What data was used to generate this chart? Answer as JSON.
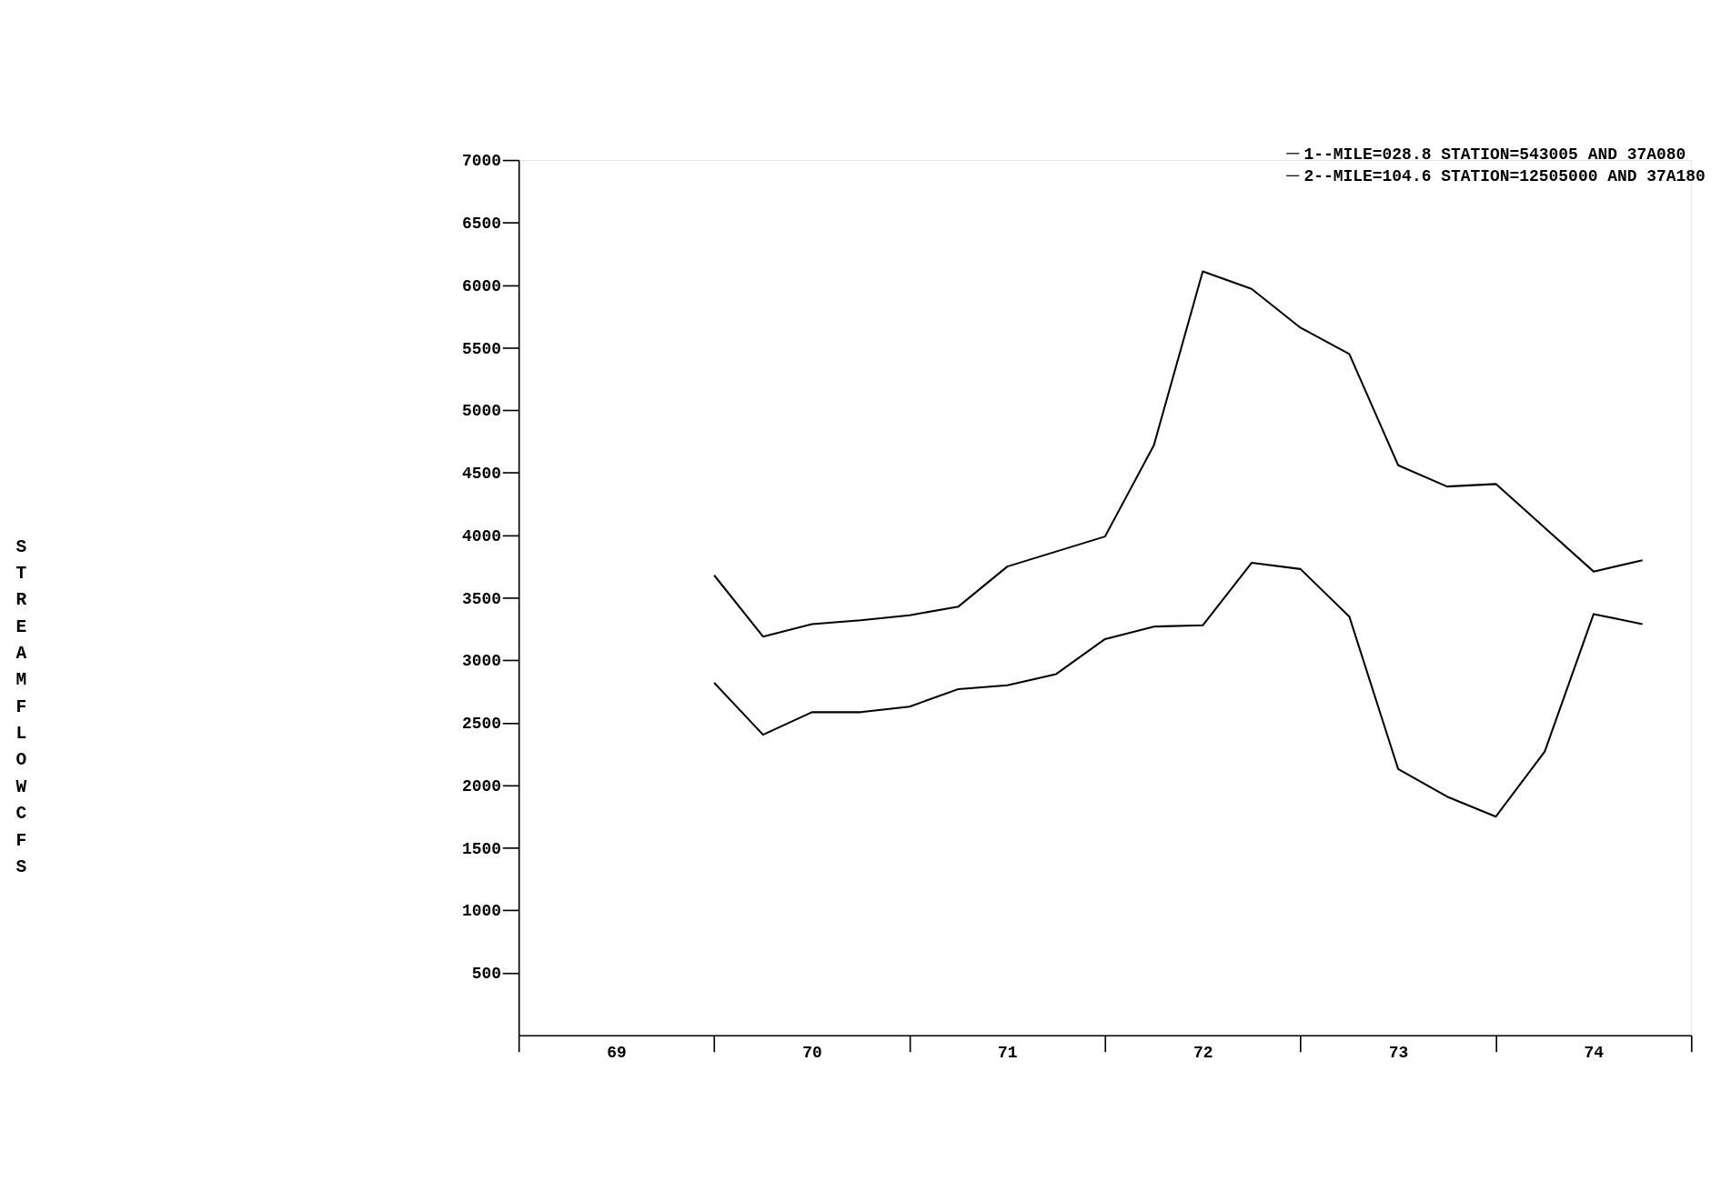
{
  "chart_data": {
    "type": "line",
    "ylabel": "STREAM FLOW CFS",
    "x": [
      70.0,
      70.25,
      70.5,
      70.75,
      71.0,
      71.25,
      71.5,
      71.75,
      72.0,
      72.25,
      72.5,
      72.75,
      73.0,
      73.25,
      73.5,
      73.75,
      74.0,
      74.25,
      74.5,
      74.75
    ],
    "series": [
      {
        "name": "1--MILE=028.8 STATION=543005   AND 37A080",
        "color": "#000000",
        "values": [
          3680,
          3190,
          3290,
          3320,
          3360,
          3430,
          3750,
          3870,
          3990,
          4720,
          6110,
          5970,
          5660,
          5450,
          4560,
          4390,
          4410,
          4060,
          3710,
          3800
        ]
      },
      {
        "name": "2--MILE=104.6 STATION=12505000 AND 37A180",
        "color": "#000000",
        "values": [
          2820,
          2405,
          2585,
          2585,
          2630,
          2770,
          2800,
          2890,
          3170,
          3270,
          3280,
          3780,
          3730,
          3350,
          2130,
          1910,
          1750,
          2270,
          3370,
          3290
        ]
      }
    ],
    "xlim": [
      69,
      75
    ],
    "xticks": [
      {
        "value": 69.5,
        "label": "69"
      },
      {
        "value": 70.5,
        "label": "70"
      },
      {
        "value": 71.5,
        "label": "71"
      },
      {
        "value": 72.5,
        "label": "72"
      },
      {
        "value": 73.5,
        "label": "73"
      },
      {
        "value": 74.5,
        "label": "74"
      }
    ],
    "ylim": [
      0,
      7000
    ],
    "yticks": [
      500,
      1000,
      1500,
      2000,
      2500,
      3000,
      3500,
      4000,
      4500,
      5000,
      5500,
      6000,
      6500,
      7000
    ],
    "grid": false,
    "legend": "top right",
    "line_style": "solid"
  }
}
